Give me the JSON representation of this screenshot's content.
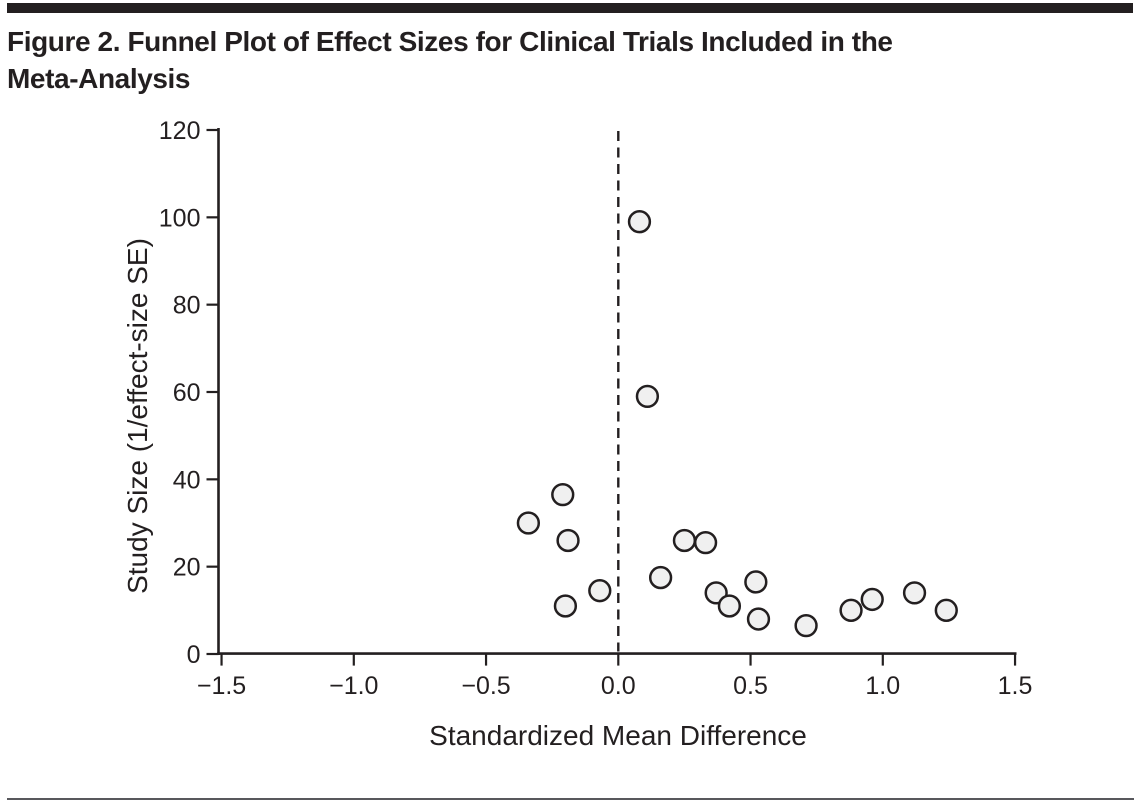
{
  "figure": {
    "title_line1": "Figure 2. Funnel Plot of Effect Sizes for Clinical Trials Included in the",
    "title_line2": "Meta-Analysis"
  },
  "colors": {
    "ink": "#231f20",
    "point_fill": "#f0f0f0",
    "background": "#ffffff",
    "bottom_rule": "#58585c"
  },
  "chart_data": {
    "type": "scatter",
    "title": "Figure 2. Funnel Plot of Effect Sizes for Clinical Trials Included in the Meta-Analysis",
    "xlabel": "Standardized Mean Difference",
    "ylabel": "Study Size (1/effect-size SE)",
    "xlim": [
      -1.5,
      1.5
    ],
    "ylim": [
      0,
      120
    ],
    "grid": false,
    "legend": "none",
    "x_ticks": [
      -1.5,
      -1.0,
      -0.5,
      0.0,
      0.5,
      1.0,
      1.5
    ],
    "x_tick_labels": [
      "−1.5",
      "−1.0",
      "−0.5",
      "0.0",
      "0.5",
      "1.0",
      "1.5"
    ],
    "y_ticks": [
      0,
      20,
      40,
      60,
      80,
      100,
      120
    ],
    "y_tick_labels": [
      "0",
      "20",
      "40",
      "60",
      "80",
      "100",
      "120"
    ],
    "reference_line": {
      "orientation": "vertical",
      "x": 0.0,
      "style": "dashed"
    },
    "points": [
      {
        "x": -0.34,
        "y": 30
      },
      {
        "x": -0.21,
        "y": 36.5
      },
      {
        "x": -0.2,
        "y": 11
      },
      {
        "x": -0.19,
        "y": 26
      },
      {
        "x": -0.07,
        "y": 14.5
      },
      {
        "x": 0.08,
        "y": 99
      },
      {
        "x": 0.11,
        "y": 59
      },
      {
        "x": 0.16,
        "y": 17.5
      },
      {
        "x": 0.25,
        "y": 26
      },
      {
        "x": 0.33,
        "y": 25.5
      },
      {
        "x": 0.37,
        "y": 14
      },
      {
        "x": 0.42,
        "y": 11
      },
      {
        "x": 0.52,
        "y": 16.5
      },
      {
        "x": 0.53,
        "y": 8
      },
      {
        "x": 0.71,
        "y": 6.5
      },
      {
        "x": 0.88,
        "y": 10
      },
      {
        "x": 0.96,
        "y": 12.5
      },
      {
        "x": 1.12,
        "y": 14
      },
      {
        "x": 1.24,
        "y": 10
      }
    ]
  }
}
